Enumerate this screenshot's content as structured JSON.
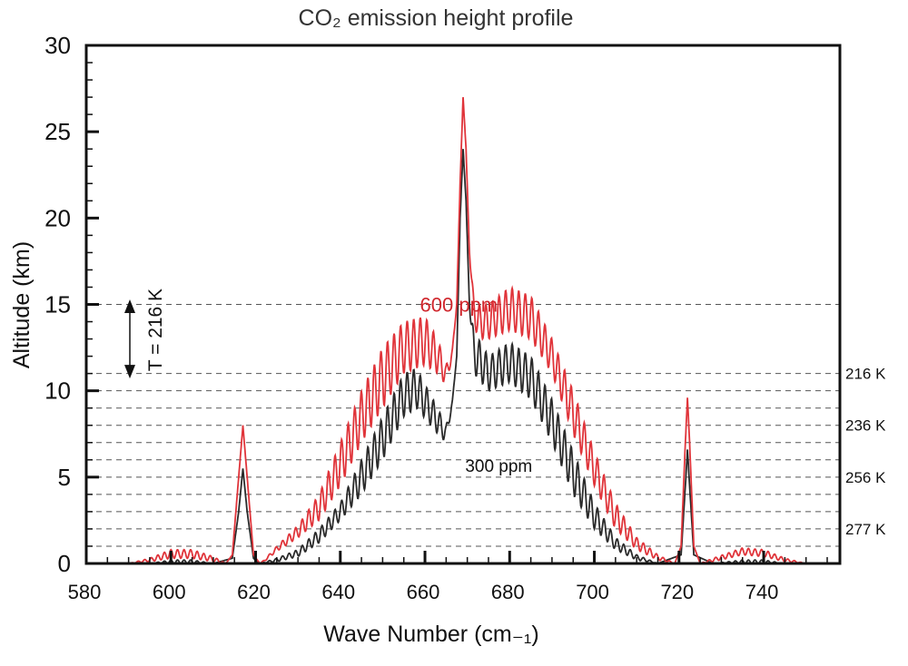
{
  "chart_data": {
    "type": "line",
    "title": "CO₂ emission height profile",
    "xlabel": "Wave Number (cm₋₁)",
    "ylabel": "Altitude (km)",
    "xlim": [
      580,
      758
    ],
    "ylim": [
      0,
      30
    ],
    "xticks": [
      580,
      600,
      620,
      640,
      660,
      680,
      700,
      720,
      740
    ],
    "yticks": [
      0,
      5,
      10,
      15,
      20,
      25,
      30
    ],
    "grid": {
      "style": "dashed",
      "y_values": [
        1,
        2,
        3,
        4,
        5,
        6,
        7,
        8,
        9,
        10,
        11,
        15
      ]
    },
    "colors": {
      "600 ppm": "#e0343a",
      "300 ppm": "#2a2a2a"
    },
    "temperature_labels": [
      {
        "y": 11,
        "text": "216 K"
      },
      {
        "y": 8,
        "text": "236 K"
      },
      {
        "y": 5,
        "text": "256 K"
      },
      {
        "y": 2,
        "text": "277 K"
      }
    ],
    "annotation": {
      "text": "T = 216 K",
      "y_range": [
        11,
        15
      ]
    },
    "series": [
      {
        "name": "600 ppm",
        "color": "#e0343a",
        "x": [
          590,
          595,
          600,
          605,
          610,
          613,
          614.5,
          616,
          617,
          618,
          619.5,
          621,
          622,
          625,
          630,
          635,
          640,
          645,
          650,
          655,
          660,
          663,
          665,
          666.5,
          667.5,
          668.3,
          669,
          669.7,
          670.5,
          671.5,
          672.5,
          675,
          680,
          685,
          690,
          695,
          700,
          705,
          710,
          715,
          719,
          720.5,
          721.5,
          722,
          722.5,
          723.5,
          725,
          728,
          735,
          740,
          745,
          750
        ],
        "upper": [
          0,
          0.3,
          0.8,
          0.8,
          0.4,
          0,
          0.5,
          5,
          8,
          5,
          0.5,
          0,
          0.2,
          1,
          2.2,
          4,
          7,
          10,
          12.5,
          14,
          14.3,
          13,
          11.5,
          12.5,
          15,
          22,
          27,
          24,
          18,
          15.5,
          15,
          15,
          16,
          15.5,
          13,
          10,
          6.5,
          3.5,
          1.5,
          0.5,
          0,
          1,
          7,
          9.6,
          7,
          1,
          0,
          0.3,
          0.9,
          0.8,
          0.3,
          0
        ],
        "lower": [
          0,
          0.1,
          0.3,
          0.3,
          0.1,
          0,
          0.5,
          5,
          8,
          5,
          0.5,
          0,
          0.1,
          0.7,
          1.5,
          2.5,
          4.5,
          7,
          9,
          11,
          11.5,
          11,
          10.3,
          12,
          15,
          22,
          27,
          24,
          18,
          14,
          13,
          13,
          13.5,
          13,
          11,
          7.5,
          4.5,
          2,
          0.8,
          0.2,
          0,
          1,
          7,
          9.6,
          7,
          1,
          0,
          0.1,
          0.5,
          0.4,
          0.1,
          0
        ]
      },
      {
        "name": "300 ppm",
        "color": "#2a2a2a",
        "x": [
          595,
          600,
          605,
          610,
          614.5,
          616,
          617,
          618,
          619.5,
          621,
          625,
          630,
          635,
          640,
          645,
          650,
          655,
          658,
          663,
          665,
          666.5,
          667.5,
          668.3,
          669,
          669.7,
          670.5,
          671.5,
          675,
          680,
          685,
          690,
          695,
          700,
          705,
          710,
          715,
          720.5,
          721.5,
          722,
          722.5,
          723.5,
          728,
          735,
          740,
          745
        ],
        "upper": [
          0,
          0.2,
          0.2,
          0,
          0.3,
          3,
          5.5,
          3,
          0.3,
          0,
          0.3,
          0.8,
          2,
          3.5,
          6,
          8.5,
          11,
          11.3,
          9,
          8,
          9.5,
          12,
          20,
          24,
          21,
          15,
          13.5,
          12,
          12.8,
          12,
          9.5,
          6.5,
          3.5,
          1.5,
          0.5,
          0,
          0.5,
          4.5,
          6.6,
          4.5,
          0.5,
          0,
          0.2,
          0.2,
          0
        ],
        "lower": [
          0,
          0,
          0,
          0,
          0.3,
          3,
          5.5,
          3,
          0.3,
          0,
          0.1,
          0.4,
          1.2,
          2.5,
          4,
          6,
          8.5,
          9,
          7.5,
          7,
          9.3,
          12,
          20,
          24,
          21,
          15,
          11,
          10,
          10.5,
          9.5,
          7,
          4,
          2,
          0.8,
          0.2,
          0,
          0.5,
          4.5,
          6.6,
          4.5,
          0.5,
          0,
          0,
          0,
          0
        ]
      }
    ],
    "series_labels": [
      {
        "text": "600 ppm",
        "x": 668,
        "y": 15
      },
      {
        "text": "300 ppm",
        "x": 680,
        "y": 6
      }
    ]
  }
}
